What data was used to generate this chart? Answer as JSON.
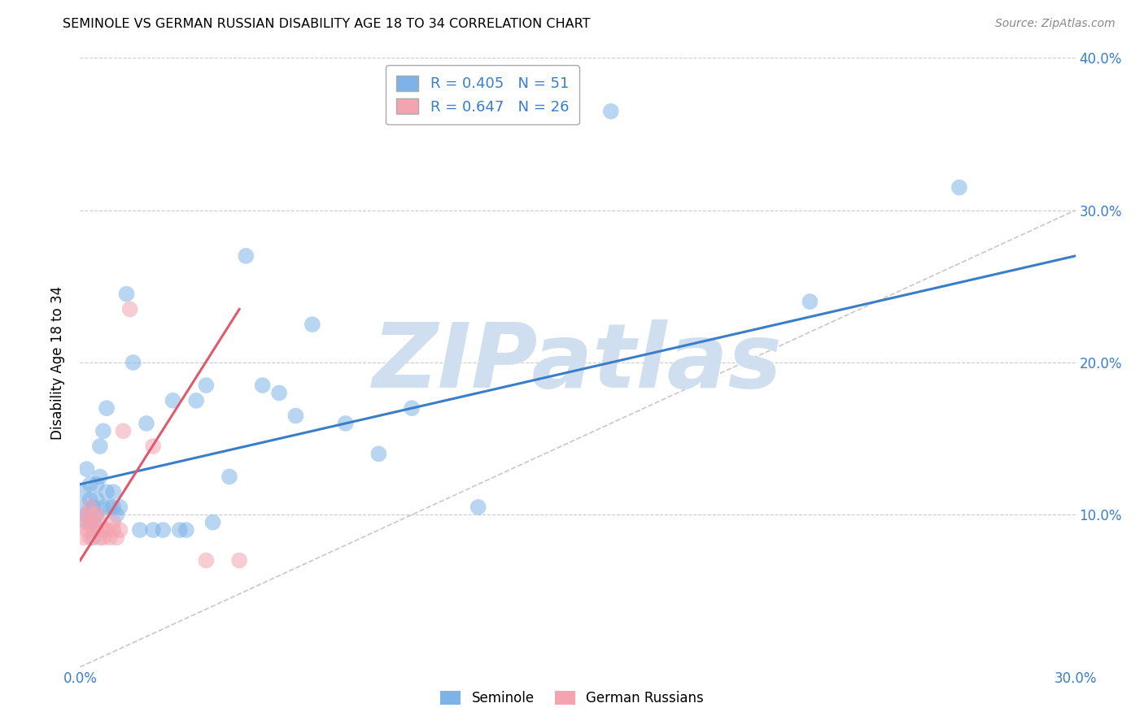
{
  "title": "SEMINOLE VS GERMAN RUSSIAN DISABILITY AGE 18 TO 34 CORRELATION CHART",
  "source": "Source: ZipAtlas.com",
  "ylabel": "Disability Age 18 to 34",
  "xlim": [
    0.0,
    0.3
  ],
  "ylim": [
    0.0,
    0.4
  ],
  "xtick_positions": [
    0.0,
    0.3
  ],
  "xtick_labels": [
    "0.0%",
    "30.0%"
  ],
  "ytick_positions": [
    0.1,
    0.2,
    0.3,
    0.4
  ],
  "ytick_labels": [
    "10.0%",
    "20.0%",
    "30.0%",
    "40.0%"
  ],
  "seminole_R": 0.405,
  "seminole_N": 51,
  "german_russian_R": 0.647,
  "german_russian_N": 26,
  "seminole_color": "#7EB3E8",
  "german_russian_color": "#F4A3B0",
  "seminole_line_color": "#3A7DC9",
  "german_russian_line_color": "#E05A6E",
  "diagonal_color": "#C8C8C8",
  "watermark": "ZIPatlas",
  "watermark_color": "#D0DFF0",
  "grid_color": "#CCCCCC",
  "seminole_line_x0": 0.0,
  "seminole_line_y0": 0.12,
  "seminole_line_x1": 0.3,
  "seminole_line_y1": 0.27,
  "german_line_x0": 0.0,
  "german_line_y0": 0.07,
  "german_line_x1": 0.048,
  "german_line_y1": 0.235,
  "seminole_x": [
    0.001,
    0.001,
    0.002,
    0.002,
    0.002,
    0.003,
    0.003,
    0.003,
    0.004,
    0.004,
    0.004,
    0.005,
    0.005,
    0.005,
    0.006,
    0.006,
    0.007,
    0.007,
    0.008,
    0.008,
    0.009,
    0.01,
    0.01,
    0.011,
    0.012,
    0.014,
    0.016,
    0.018,
    0.02,
    0.022,
    0.025,
    0.028,
    0.03,
    0.032,
    0.035,
    0.038,
    0.04,
    0.045,
    0.05,
    0.055,
    0.06,
    0.065,
    0.07,
    0.08,
    0.09,
    0.1,
    0.12,
    0.145,
    0.16,
    0.22,
    0.265
  ],
  "seminole_y": [
    0.115,
    0.105,
    0.13,
    0.1,
    0.095,
    0.12,
    0.11,
    0.095,
    0.105,
    0.095,
    0.085,
    0.12,
    0.11,
    0.1,
    0.145,
    0.125,
    0.155,
    0.105,
    0.17,
    0.115,
    0.105,
    0.115,
    0.105,
    0.1,
    0.105,
    0.245,
    0.2,
    0.09,
    0.16,
    0.09,
    0.09,
    0.175,
    0.09,
    0.09,
    0.175,
    0.185,
    0.095,
    0.125,
    0.27,
    0.185,
    0.18,
    0.165,
    0.225,
    0.16,
    0.14,
    0.17,
    0.105,
    0.385,
    0.365,
    0.24,
    0.315
  ],
  "german_x": [
    0.001,
    0.001,
    0.002,
    0.002,
    0.003,
    0.003,
    0.003,
    0.004,
    0.004,
    0.005,
    0.005,
    0.006,
    0.006,
    0.007,
    0.007,
    0.008,
    0.009,
    0.01,
    0.01,
    0.011,
    0.012,
    0.013,
    0.015,
    0.022,
    0.038,
    0.048
  ],
  "german_y": [
    0.085,
    0.095,
    0.09,
    0.1,
    0.085,
    0.095,
    0.105,
    0.09,
    0.1,
    0.09,
    0.1,
    0.085,
    0.095,
    0.09,
    0.085,
    0.09,
    0.085,
    0.095,
    0.09,
    0.085,
    0.09,
    0.155,
    0.235,
    0.145,
    0.07,
    0.07
  ]
}
